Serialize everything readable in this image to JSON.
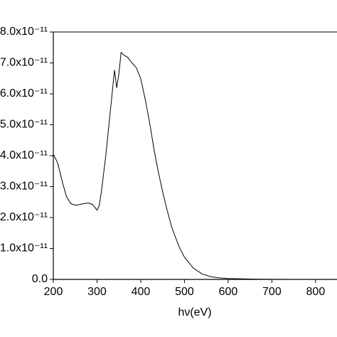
{
  "chart_data": {
    "type": "line",
    "x_label": "hν(eV)",
    "x": [
      200,
      210,
      220,
      230,
      240,
      250,
      260,
      270,
      280,
      290,
      300,
      305,
      310,
      320,
      330,
      340,
      345,
      350,
      355,
      360,
      370,
      380,
      390,
      400,
      410,
      420,
      430,
      440,
      450,
      460,
      470,
      480,
      490,
      500,
      520,
      540,
      560,
      580,
      600,
      650,
      700,
      750,
      800,
      849
    ],
    "series": [
      {
        "color": "#000000",
        "values": [
          4.05e-11,
          3.76e-11,
          3.19e-11,
          2.68e-11,
          2.45e-11,
          2.4e-11,
          2.42e-11,
          2.45e-11,
          2.47e-11,
          2.42e-11,
          2.24e-11,
          2.38e-11,
          2.84e-11,
          4e-11,
          5.38e-11,
          6.77e-11,
          6.19e-11,
          6.65e-11,
          7.34e-11,
          7.27e-11,
          7.18e-11,
          7e-11,
          6.84e-11,
          6.49e-11,
          5.84e-11,
          5.1e-11,
          4.23e-11,
          3.49e-11,
          2.84e-11,
          2.26e-11,
          1.73e-11,
          1.34e-11,
          9.9e-12,
          7.2e-12,
          3.7e-12,
          1.8e-12,
          9e-13,
          5e-13,
          3e-13,
          1e-13,
          4e-14,
          0,
          0,
          0
        ]
      }
    ],
    "xlim": [
      200,
      849
    ],
    "xticks": [
      200,
      300,
      400,
      500,
      600,
      700,
      800
    ],
    "ylim": [
      0,
      8e-11
    ],
    "yticks": [
      {
        "value": 0,
        "label": "0.0"
      },
      {
        "value": 1e-11,
        "label": "1.0x10⁻¹¹"
      },
      {
        "value": 2e-11,
        "label": "2.0x10⁻¹¹"
      },
      {
        "value": 3e-11,
        "label": "3.0x10⁻¹¹"
      },
      {
        "value": 4e-11,
        "label": "4.0x10⁻¹¹"
      },
      {
        "value": 5e-11,
        "label": "5.0x10⁻¹¹"
      },
      {
        "value": 6e-11,
        "label": "6.0x10⁻¹¹"
      },
      {
        "value": 7e-11,
        "label": "7.0x10⁻¹¹"
      },
      {
        "value": 8e-11,
        "label": "8.0x10⁻¹¹"
      }
    ]
  }
}
